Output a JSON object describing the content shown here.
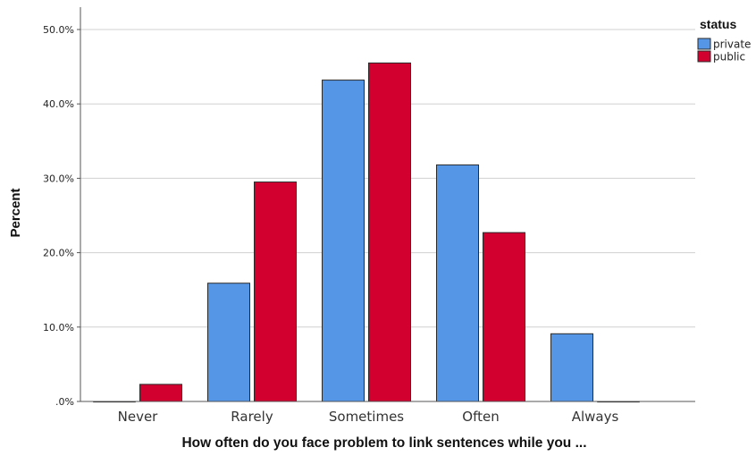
{
  "chart_data": {
    "type": "bar",
    "title": "",
    "xlabel": "How often do you face problem to link sentences while you ...",
    "ylabel": "Percent",
    "categories": [
      "Never",
      "Rarely",
      "Sometimes",
      "Often",
      "Always"
    ],
    "series": [
      {
        "name": "private",
        "color": "#5596e6",
        "values": [
          0.0,
          15.9,
          43.2,
          31.8,
          9.1
        ]
      },
      {
        "name": "public",
        "color": "#d2002f",
        "values": [
          2.3,
          29.5,
          45.5,
          22.7,
          0.0
        ]
      }
    ],
    "ylim": [
      0,
      50
    ],
    "yticks": [
      ".0%",
      "10.0%",
      "20.0%",
      "30.0%",
      "40.0%",
      "50.0%"
    ],
    "grid": true,
    "legend": {
      "title": "status",
      "position": "top-right"
    }
  }
}
